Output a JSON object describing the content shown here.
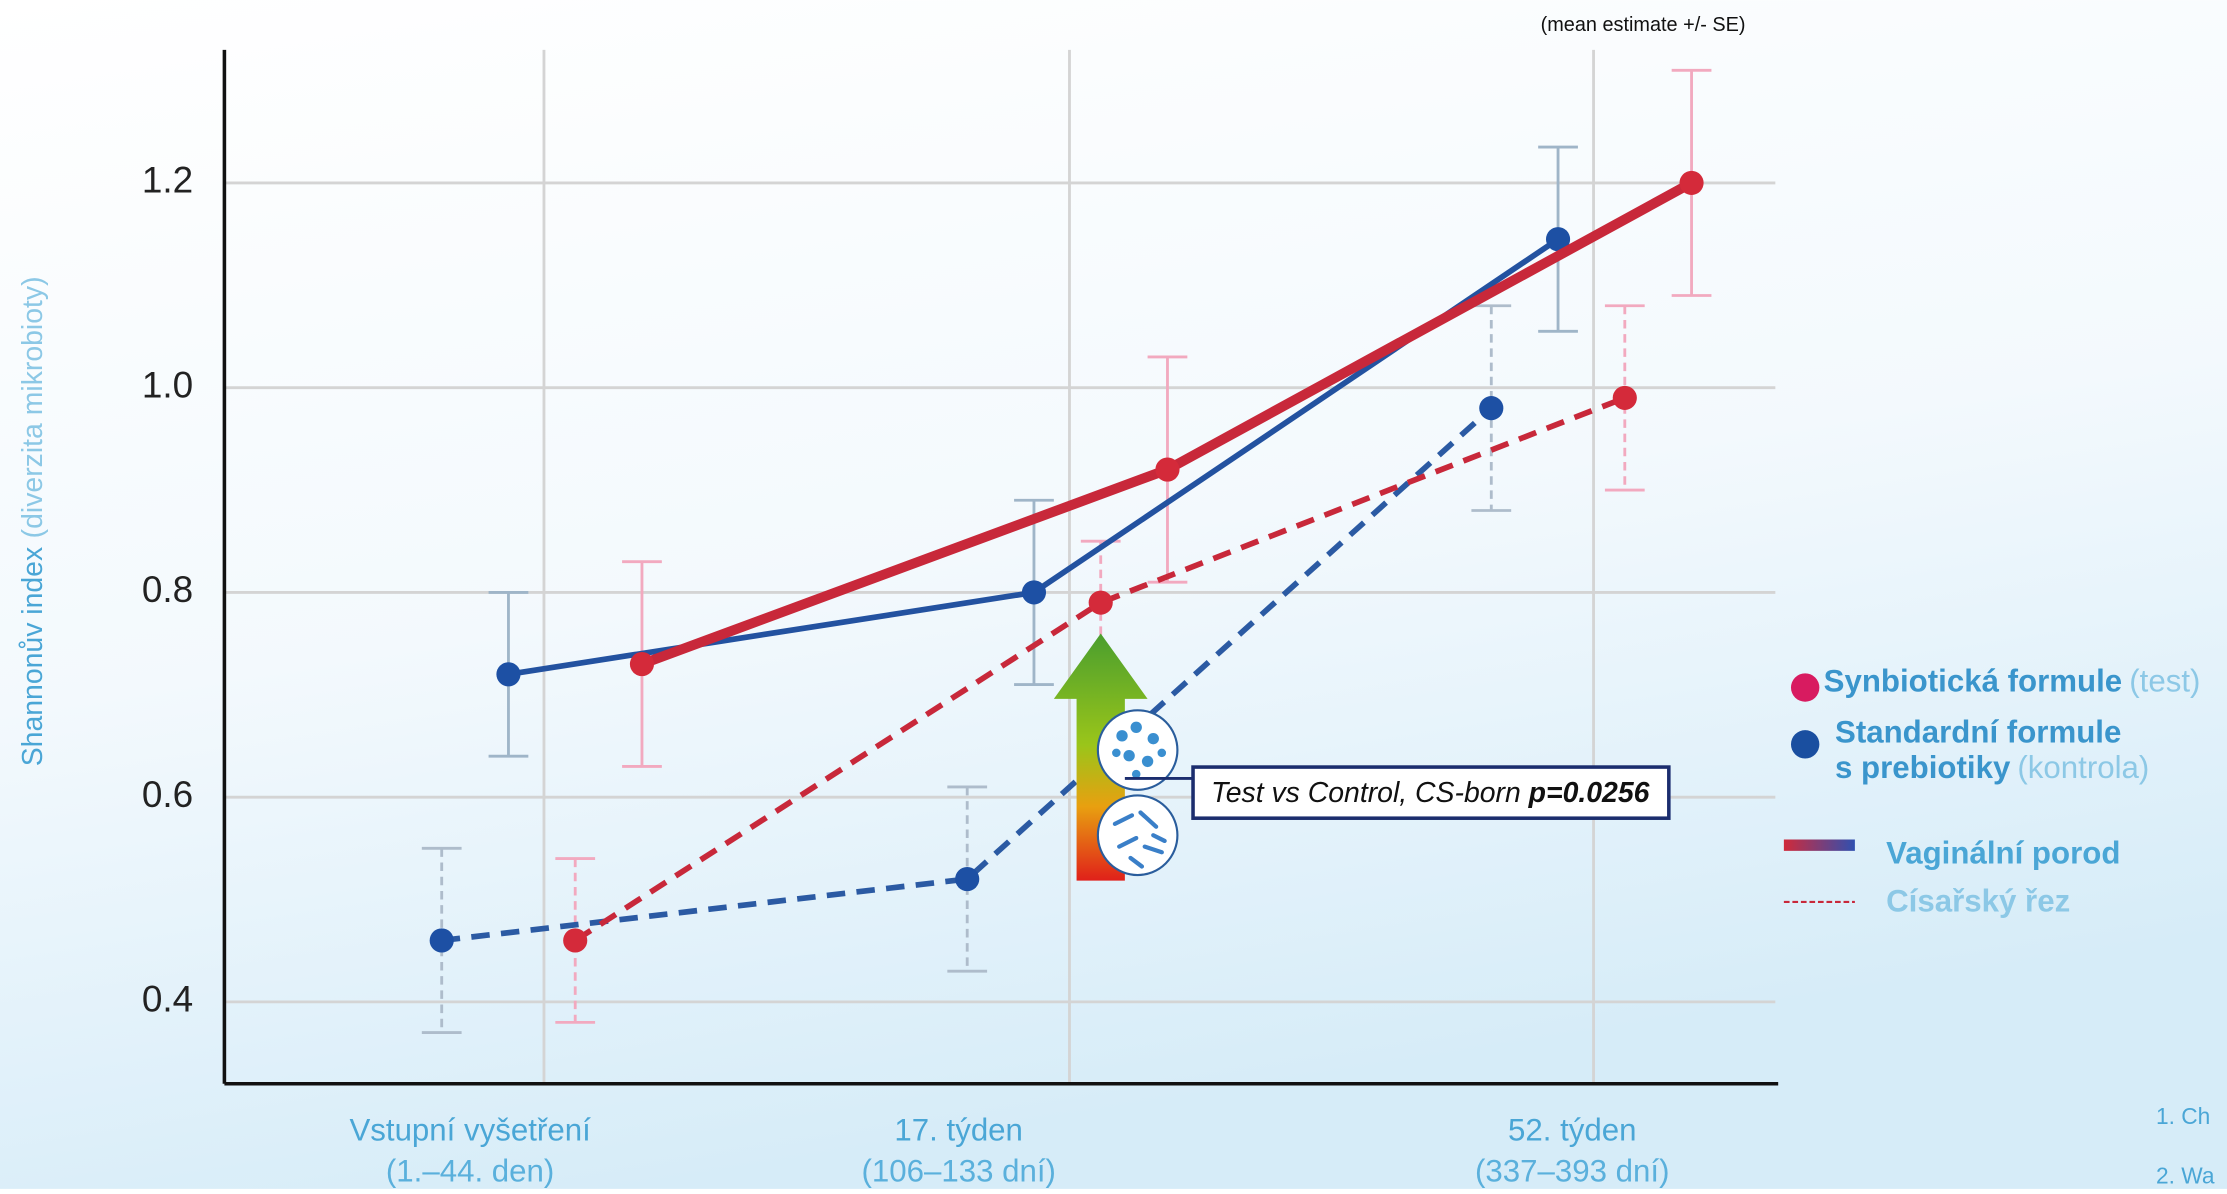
{
  "chart_data": {
    "type": "line",
    "subtitle": "(mean estimate +/- SE)",
    "ylabel": {
      "main": "Shannonův index",
      "note": "(diverzita mikrobioty)"
    },
    "categories": [
      [
        "Vstupní vyšetření",
        "(1.–44. den)"
      ],
      [
        "17. týden",
        "(106–133 dní)"
      ],
      [
        "52. týden",
        "(337–393 dní)"
      ]
    ],
    "series": [
      {
        "color": "#2b5aa3",
        "dashed": true,
        "values": [
          0.46,
          0.52,
          0.98
        ],
        "errors": [
          0.09,
          0.09,
          0.1
        ],
        "error_color": "#aebccb"
      },
      {
        "color": "#c8283a",
        "dashed": true,
        "values": [
          0.46,
          0.79,
          0.99
        ],
        "errors": [
          0.08,
          0.06,
          0.09
        ],
        "error_color": "#f2a9bf"
      },
      {
        "color": "#2352a0",
        "dashed": false,
        "values": [
          0.72,
          0.8,
          1.145
        ],
        "errors": [
          0.08,
          0.09,
          0.09
        ],
        "error_color": "#9fb5c8"
      },
      {
        "color": "#c8283a",
        "dashed": false,
        "values": [
          0.73,
          0.92,
          1.2
        ],
        "errors": [
          0.1,
          0.11,
          0.11
        ],
        "error_color": "#f2a9bf"
      }
    ],
    "ylim": [
      0.32,
      1.33
    ],
    "yticks": [
      0.4,
      0.6,
      0.8,
      {
        "value": 1,
        "label": "1.0"
      },
      1.2
    ],
    "grid": true,
    "annotation": {
      "text": "Test vs Control, CS-born ",
      "p": "p=0.0256"
    },
    "legend": {
      "test": {
        "name": "Synbiotická formule",
        "note": "(test)",
        "color": "#d81b60"
      },
      "control": {
        "name1": "Standardní formule",
        "name2": "s prebiotiky",
        "note": "(kontrola)",
        "color": "#1a4fa0"
      },
      "vaginal": "Vaginální porod",
      "cesarean": "Císařský řez"
    },
    "footnotes": [
      "1. Ch",
      "2. Wa"
    ]
  }
}
